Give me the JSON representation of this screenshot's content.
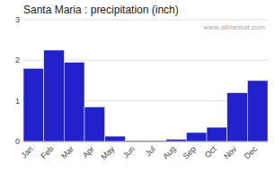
{
  "chart_data": {
    "type": "bar",
    "title": "Santa Maria : precipitation (inch)",
    "categories": [
      "Jan",
      "Feb",
      "Mar",
      "Apr",
      "May",
      "Jun",
      "Jul",
      "Aug",
      "Sep",
      "Oct",
      "Nov",
      "Dec"
    ],
    "values": [
      1.8,
      2.25,
      1.95,
      0.85,
      0.13,
      0.02,
      0.02,
      0.05,
      0.22,
      0.35,
      1.2,
      1.5
    ],
    "color": "#2222cc",
    "ylim": [
      0,
      3
    ],
    "yticks": [
      0,
      1,
      2,
      3
    ],
    "grid": true,
    "annotations": [
      "www.allmetsat.com"
    ]
  }
}
